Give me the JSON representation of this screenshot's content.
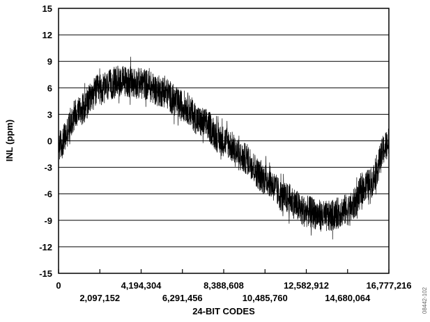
{
  "chart_data": {
    "type": "line",
    "title": "",
    "xlabel": "24-BIT CODES",
    "ylabel": "INL (ppm)",
    "xlim": [
      0,
      16777216
    ],
    "ylim": [
      -15,
      15
    ],
    "grid": "horizontal",
    "x_tick_labels_top_row": [
      "0",
      "4,194,304",
      "8,388,608",
      "12,582,912",
      "16,777,216"
    ],
    "x_tick_labels_bottom_row": [
      "2,097,152",
      "6,291,456",
      "10,485,760",
      "14,680,064"
    ],
    "y_tick_labels": [
      "15",
      "12",
      "9",
      "6",
      "3",
      "0",
      "-3",
      "-6",
      "-9",
      "-12",
      "-15"
    ],
    "series": [
      {
        "color": "#000000",
        "noise_band_ppm": 1.8,
        "x": [
          0,
          1048576,
          2097152,
          3145728,
          4194304,
          5242880,
          6291456,
          7340032,
          8388608,
          9437184,
          10485760,
          11534336,
          12582912,
          13631488,
          14680064,
          15728640,
          16777216
        ],
        "y": [
          -0.5,
          3.5,
          5.8,
          6.8,
          6.5,
          5.6,
          4.0,
          2.0,
          0,
          -2.0,
          -4.3,
          -6.5,
          -8.0,
          -8.6,
          -7.8,
          -5.0,
          -0.3
        ]
      }
    ]
  },
  "side_id": "08442-102"
}
